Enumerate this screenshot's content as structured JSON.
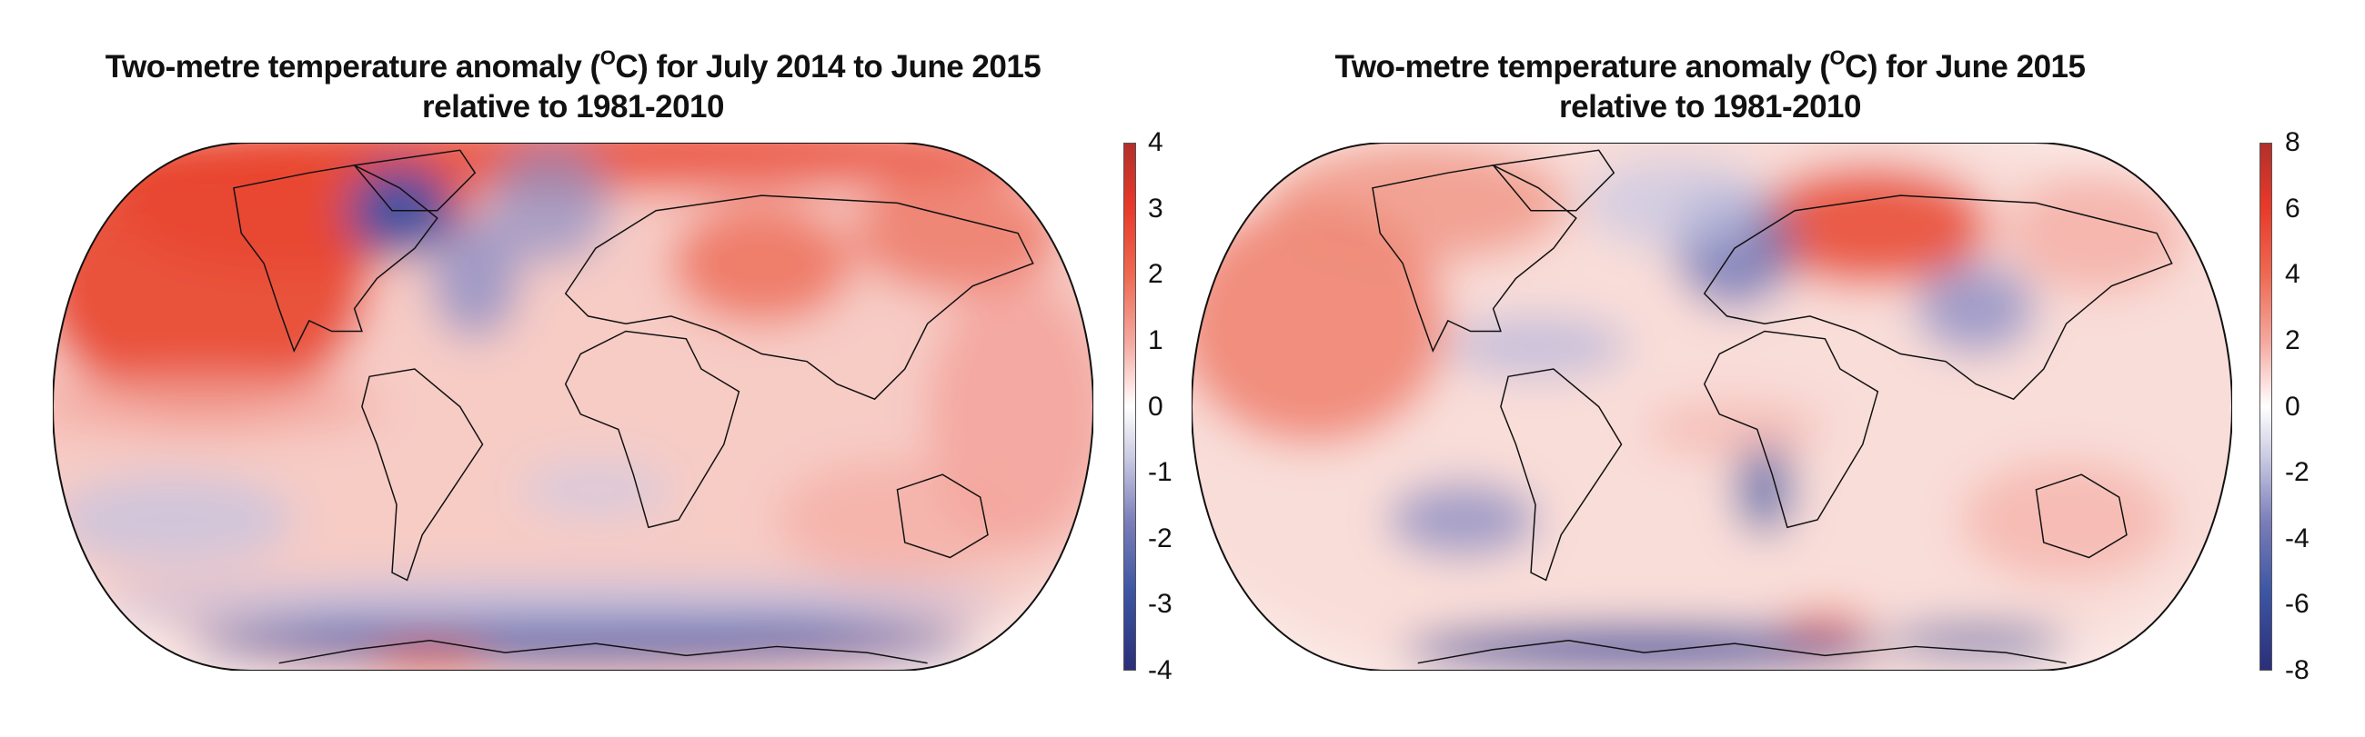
{
  "chart_data": [
    {
      "type": "heatmap",
      "title_prefix": "Two-metre temperature anomaly (",
      "title_sup": "O",
      "title_suffix": "C) for July 2014 to June 2015",
      "subtitle": "relative to 1981-2010",
      "projection": "Robinson (world map)",
      "colorbar": {
        "range": [
          -4,
          4
        ],
        "ticks": [
          "4",
          "3",
          "2",
          "1",
          "0",
          "-1",
          "-2",
          "-3",
          "-4"
        ],
        "colors": [
          "#2a2f78",
          "#3d56a4",
          "#ffffff",
          "#e8392a",
          "#b2302a"
        ]
      }
    },
    {
      "type": "heatmap",
      "title_prefix": "Two-metre temperature anomaly (",
      "title_sup": "O",
      "title_suffix": "C) for June 2015",
      "subtitle": "relative to 1981-2010",
      "projection": "Robinson (world map)",
      "colorbar": {
        "range": [
          -8,
          8
        ],
        "ticks": [
          "8",
          "6",
          "4",
          "2",
          "0",
          "-2",
          "-4",
          "-6",
          "-8"
        ],
        "colors": [
          "#2a2f78",
          "#3d56a4",
          "#ffffff",
          "#e8392a",
          "#b2302a"
        ]
      }
    }
  ]
}
